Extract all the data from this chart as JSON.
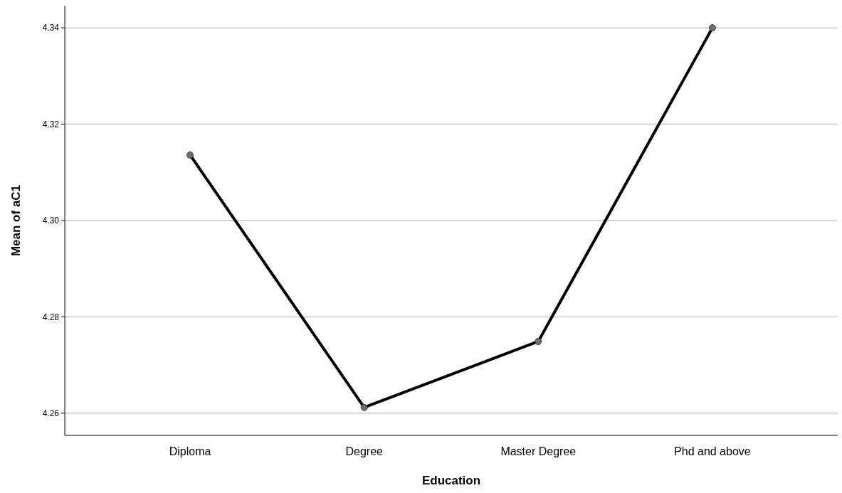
{
  "chart_data": {
    "type": "line",
    "xlabel": "Education",
    "ylabel": "Mean of aC1",
    "categories": [
      "Diploma",
      "Degree",
      "Master Degree",
      "Phd and above"
    ],
    "series": [
      {
        "color": "#000000",
        "values": [
          4.3136,
          4.2612,
          4.2749,
          4.34
        ]
      }
    ],
    "ylim": [
      4.2554,
      4.3446
    ],
    "yticks": [
      4.26,
      4.28,
      {
        "value": 4.3,
        "label": "4.30"
      },
      4.32,
      4.34
    ],
    "grid": "y",
    "marker": "circle",
    "line_style": "solid"
  }
}
